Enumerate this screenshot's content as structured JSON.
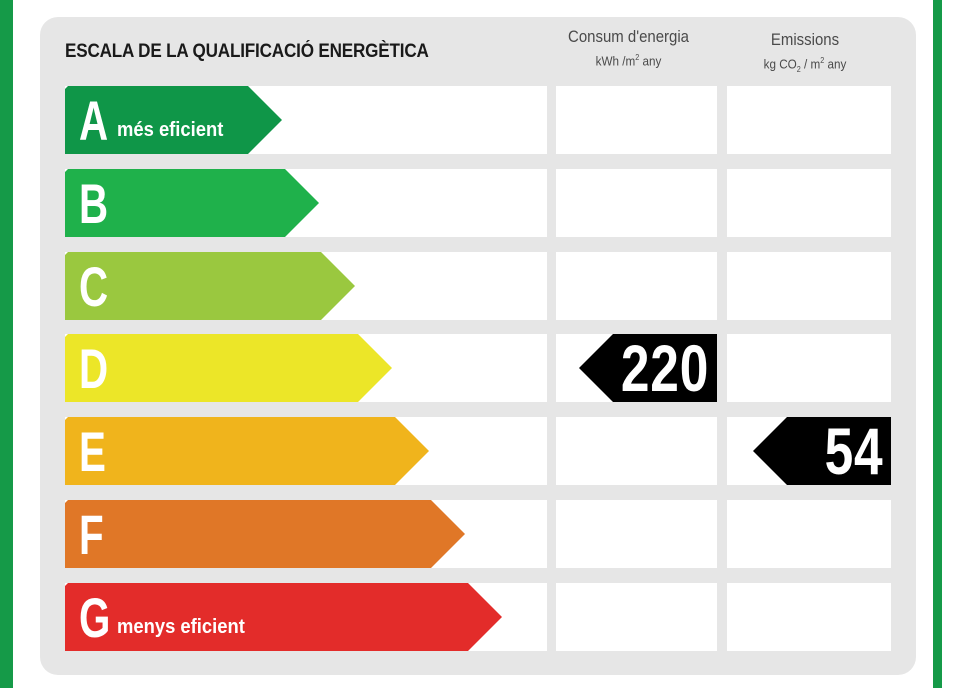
{
  "header": {
    "title": "ESCALA DE LA QUALIFICACIÓ ENERGÈTICA",
    "consumption": {
      "label": "Consum d'energia",
      "unit_prefix": "kWh /m",
      "unit_exp": "2",
      "unit_suffix": " any"
    },
    "emissions": {
      "label": "Emissions",
      "unit_prefix": "kg CO",
      "unit_sub": "2",
      "unit_mid": " / m",
      "unit_exp": "2",
      "unit_suffix": " any"
    }
  },
  "ratings": [
    {
      "letter": "A",
      "label": "més eficient",
      "color": "#0f9648"
    },
    {
      "letter": "B",
      "label": "",
      "color": "#1fb14b"
    },
    {
      "letter": "C",
      "label": "",
      "color": "#9ac83f"
    },
    {
      "letter": "D",
      "label": "",
      "color": "#ece628"
    },
    {
      "letter": "E",
      "label": "",
      "color": "#f0b41c"
    },
    {
      "letter": "F",
      "label": "",
      "color": "#e07727"
    },
    {
      "letter": "G",
      "label": "menys eficient",
      "color": "#e32c2a"
    }
  ],
  "consumption_value": {
    "rating": "D",
    "value": "220"
  },
  "emissions_value": {
    "rating": "E",
    "value": "54"
  },
  "colors": {
    "frame": "#159a48",
    "panel": "#e6e6e6",
    "tag": "#000000"
  }
}
